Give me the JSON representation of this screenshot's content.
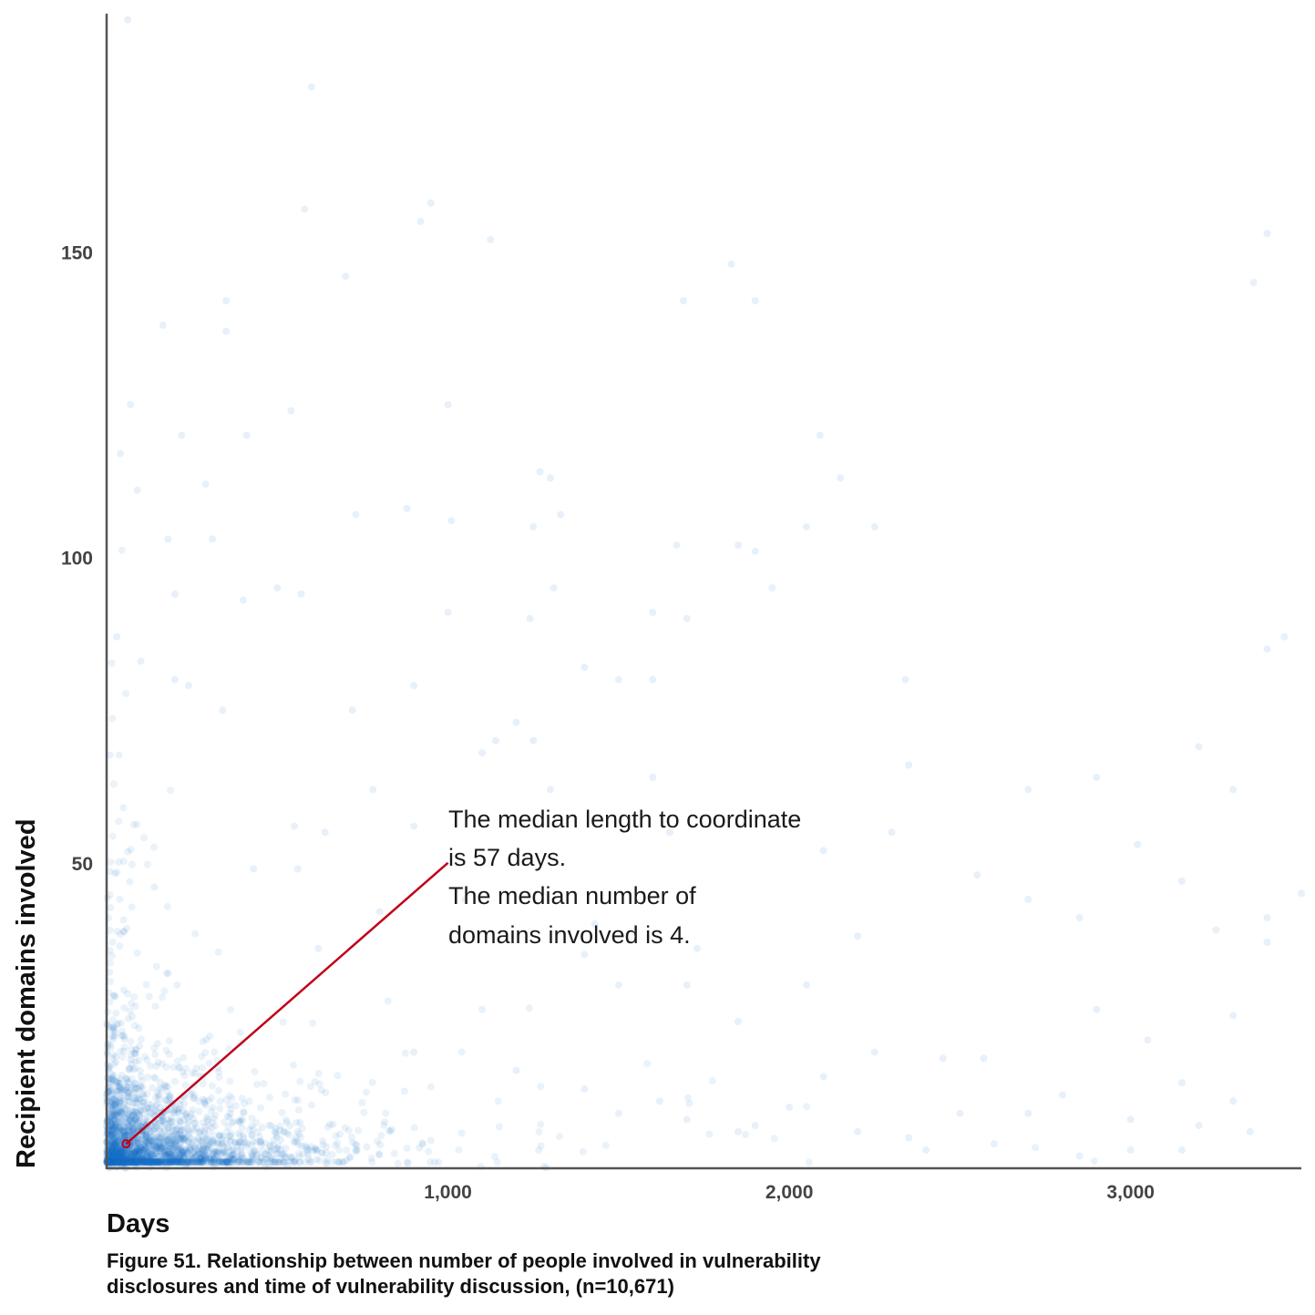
{
  "chart_data": {
    "type": "scatter",
    "xlabel": "Days",
    "ylabel": "Recipient domains involved",
    "xlim": [
      0,
      3500
    ],
    "ylim": [
      0,
      189
    ],
    "x_ticks": [
      {
        "value": 1000,
        "label": "1,000"
      },
      {
        "value": 2000,
        "label": "2,000"
      },
      {
        "value": 3000,
        "label": "3,000"
      }
    ],
    "y_ticks": [
      {
        "value": 50,
        "label": "50"
      },
      {
        "value": 100,
        "label": "100"
      },
      {
        "value": 150,
        "label": "150"
      }
    ],
    "grid": false,
    "point_color": "#1a6fc4",
    "annotation_color": "#c0001a",
    "median": {
      "x": 57,
      "y": 4
    },
    "annotation_anchor": {
      "x": 1000,
      "y": 50
    },
    "annotation_lines": [
      "The median length to coordinate",
      "is 57 days.",
      "The median number of",
      "domains involved is 4."
    ],
    "n": 10671,
    "points": [
      [
        62,
        188
      ],
      [
        600,
        177
      ],
      [
        950,
        158
      ],
      [
        580,
        157
      ],
      [
        920,
        155
      ],
      [
        1125,
        152
      ],
      [
        3400,
        153
      ],
      [
        700,
        146
      ],
      [
        3360,
        145
      ],
      [
        1830,
        148
      ],
      [
        350,
        142
      ],
      [
        1690,
        142
      ],
      [
        1900,
        142
      ],
      [
        165,
        138
      ],
      [
        350,
        137
      ],
      [
        70,
        125
      ],
      [
        1000,
        125
      ],
      [
        540,
        124
      ],
      [
        220,
        120
      ],
      [
        410,
        120
      ],
      [
        2090,
        120
      ],
      [
        40,
        117
      ],
      [
        90,
        111
      ],
      [
        290,
        112
      ],
      [
        1270,
        114
      ],
      [
        1300,
        113
      ],
      [
        2150,
        113
      ],
      [
        880,
        108
      ],
      [
        730,
        107
      ],
      [
        1010,
        106
      ],
      [
        1250,
        105
      ],
      [
        2050,
        105
      ],
      [
        2250,
        105
      ],
      [
        1330,
        107
      ],
      [
        180,
        103
      ],
      [
        310,
        103
      ],
      [
        1670,
        102
      ],
      [
        1850,
        102
      ],
      [
        1900,
        101
      ],
      [
        200,
        94
      ],
      [
        500,
        95
      ],
      [
        570,
        94
      ],
      [
        1310,
        95
      ],
      [
        1950,
        95
      ],
      [
        400,
        93
      ],
      [
        1240,
        90
      ],
      [
        1000,
        91
      ],
      [
        1600,
        91
      ],
      [
        1700,
        90
      ],
      [
        30,
        87
      ],
      [
        100,
        83
      ],
      [
        200,
        80
      ],
      [
        3400,
        85
      ],
      [
        3450,
        87
      ],
      [
        1500,
        80
      ],
      [
        1600,
        80
      ],
      [
        900,
        79
      ],
      [
        1400,
        82
      ],
      [
        240,
        79
      ],
      [
        2340,
        80
      ],
      [
        340,
        75
      ],
      [
        720,
        75
      ],
      [
        1200,
        73
      ],
      [
        1140,
        70
      ],
      [
        1250,
        70
      ],
      [
        3200,
        69
      ],
      [
        1100,
        68
      ],
      [
        1600,
        64
      ],
      [
        2350,
        66
      ],
      [
        2900,
        64
      ],
      [
        1300,
        62
      ],
      [
        3300,
        62
      ],
      [
        780,
        62
      ],
      [
        2700,
        62
      ],
      [
        640,
        55
      ],
      [
        550,
        56
      ],
      [
        900,
        56
      ],
      [
        1650,
        55
      ],
      [
        2300,
        55
      ],
      [
        3020,
        53
      ],
      [
        2100,
        52
      ],
      [
        430,
        49
      ],
      [
        560,
        49
      ],
      [
        2550,
        48
      ],
      [
        3150,
        47
      ],
      [
        3500,
        45
      ],
      [
        140,
        46
      ],
      [
        2700,
        44
      ],
      [
        1050,
        44
      ],
      [
        800,
        42
      ],
      [
        2850,
        41
      ],
      [
        3400,
        41
      ],
      [
        1430,
        40
      ],
      [
        3250,
        39
      ],
      [
        620,
        36
      ],
      [
        1400,
        35
      ],
      [
        2200,
        38
      ],
      [
        3400,
        37
      ],
      [
        1730,
        36
      ],
      [
        1500,
        30
      ],
      [
        1700,
        30
      ],
      [
        2050,
        30
      ],
      [
        1100,
        26
      ],
      [
        2900,
        26
      ],
      [
        3300,
        25
      ],
      [
        1850,
        24
      ],
      [
        3050,
        21
      ],
      [
        2250,
        19
      ],
      [
        2450,
        18
      ],
      [
        2570,
        18
      ],
      [
        900,
        19
      ],
      [
        1200,
        16
      ],
      [
        2100,
        15
      ],
      [
        3150,
        14
      ],
      [
        3300,
        11
      ],
      [
        2800,
        12
      ],
      [
        1400,
        13
      ],
      [
        1620,
        11
      ],
      [
        2000,
        10
      ],
      [
        2500,
        9
      ],
      [
        2700,
        9
      ],
      [
        3000,
        8
      ],
      [
        3200,
        7
      ],
      [
        3350,
        6
      ],
      [
        1850,
        6
      ],
      [
        2350,
        5
      ],
      [
        2600,
        4
      ],
      [
        3000,
        3
      ],
      [
        3150,
        3
      ],
      [
        1500,
        9
      ],
      [
        1700,
        8
      ],
      [
        1900,
        7
      ],
      [
        2200,
        6
      ],
      [
        2400,
        3
      ],
      [
        2850,
        2
      ]
    ]
  },
  "caption": {
    "line1": "Figure 51.  Relationship between number of people involved in vulnerability",
    "line2": "disclosures and time of vulnerability discussion, (n=10,671)"
  }
}
